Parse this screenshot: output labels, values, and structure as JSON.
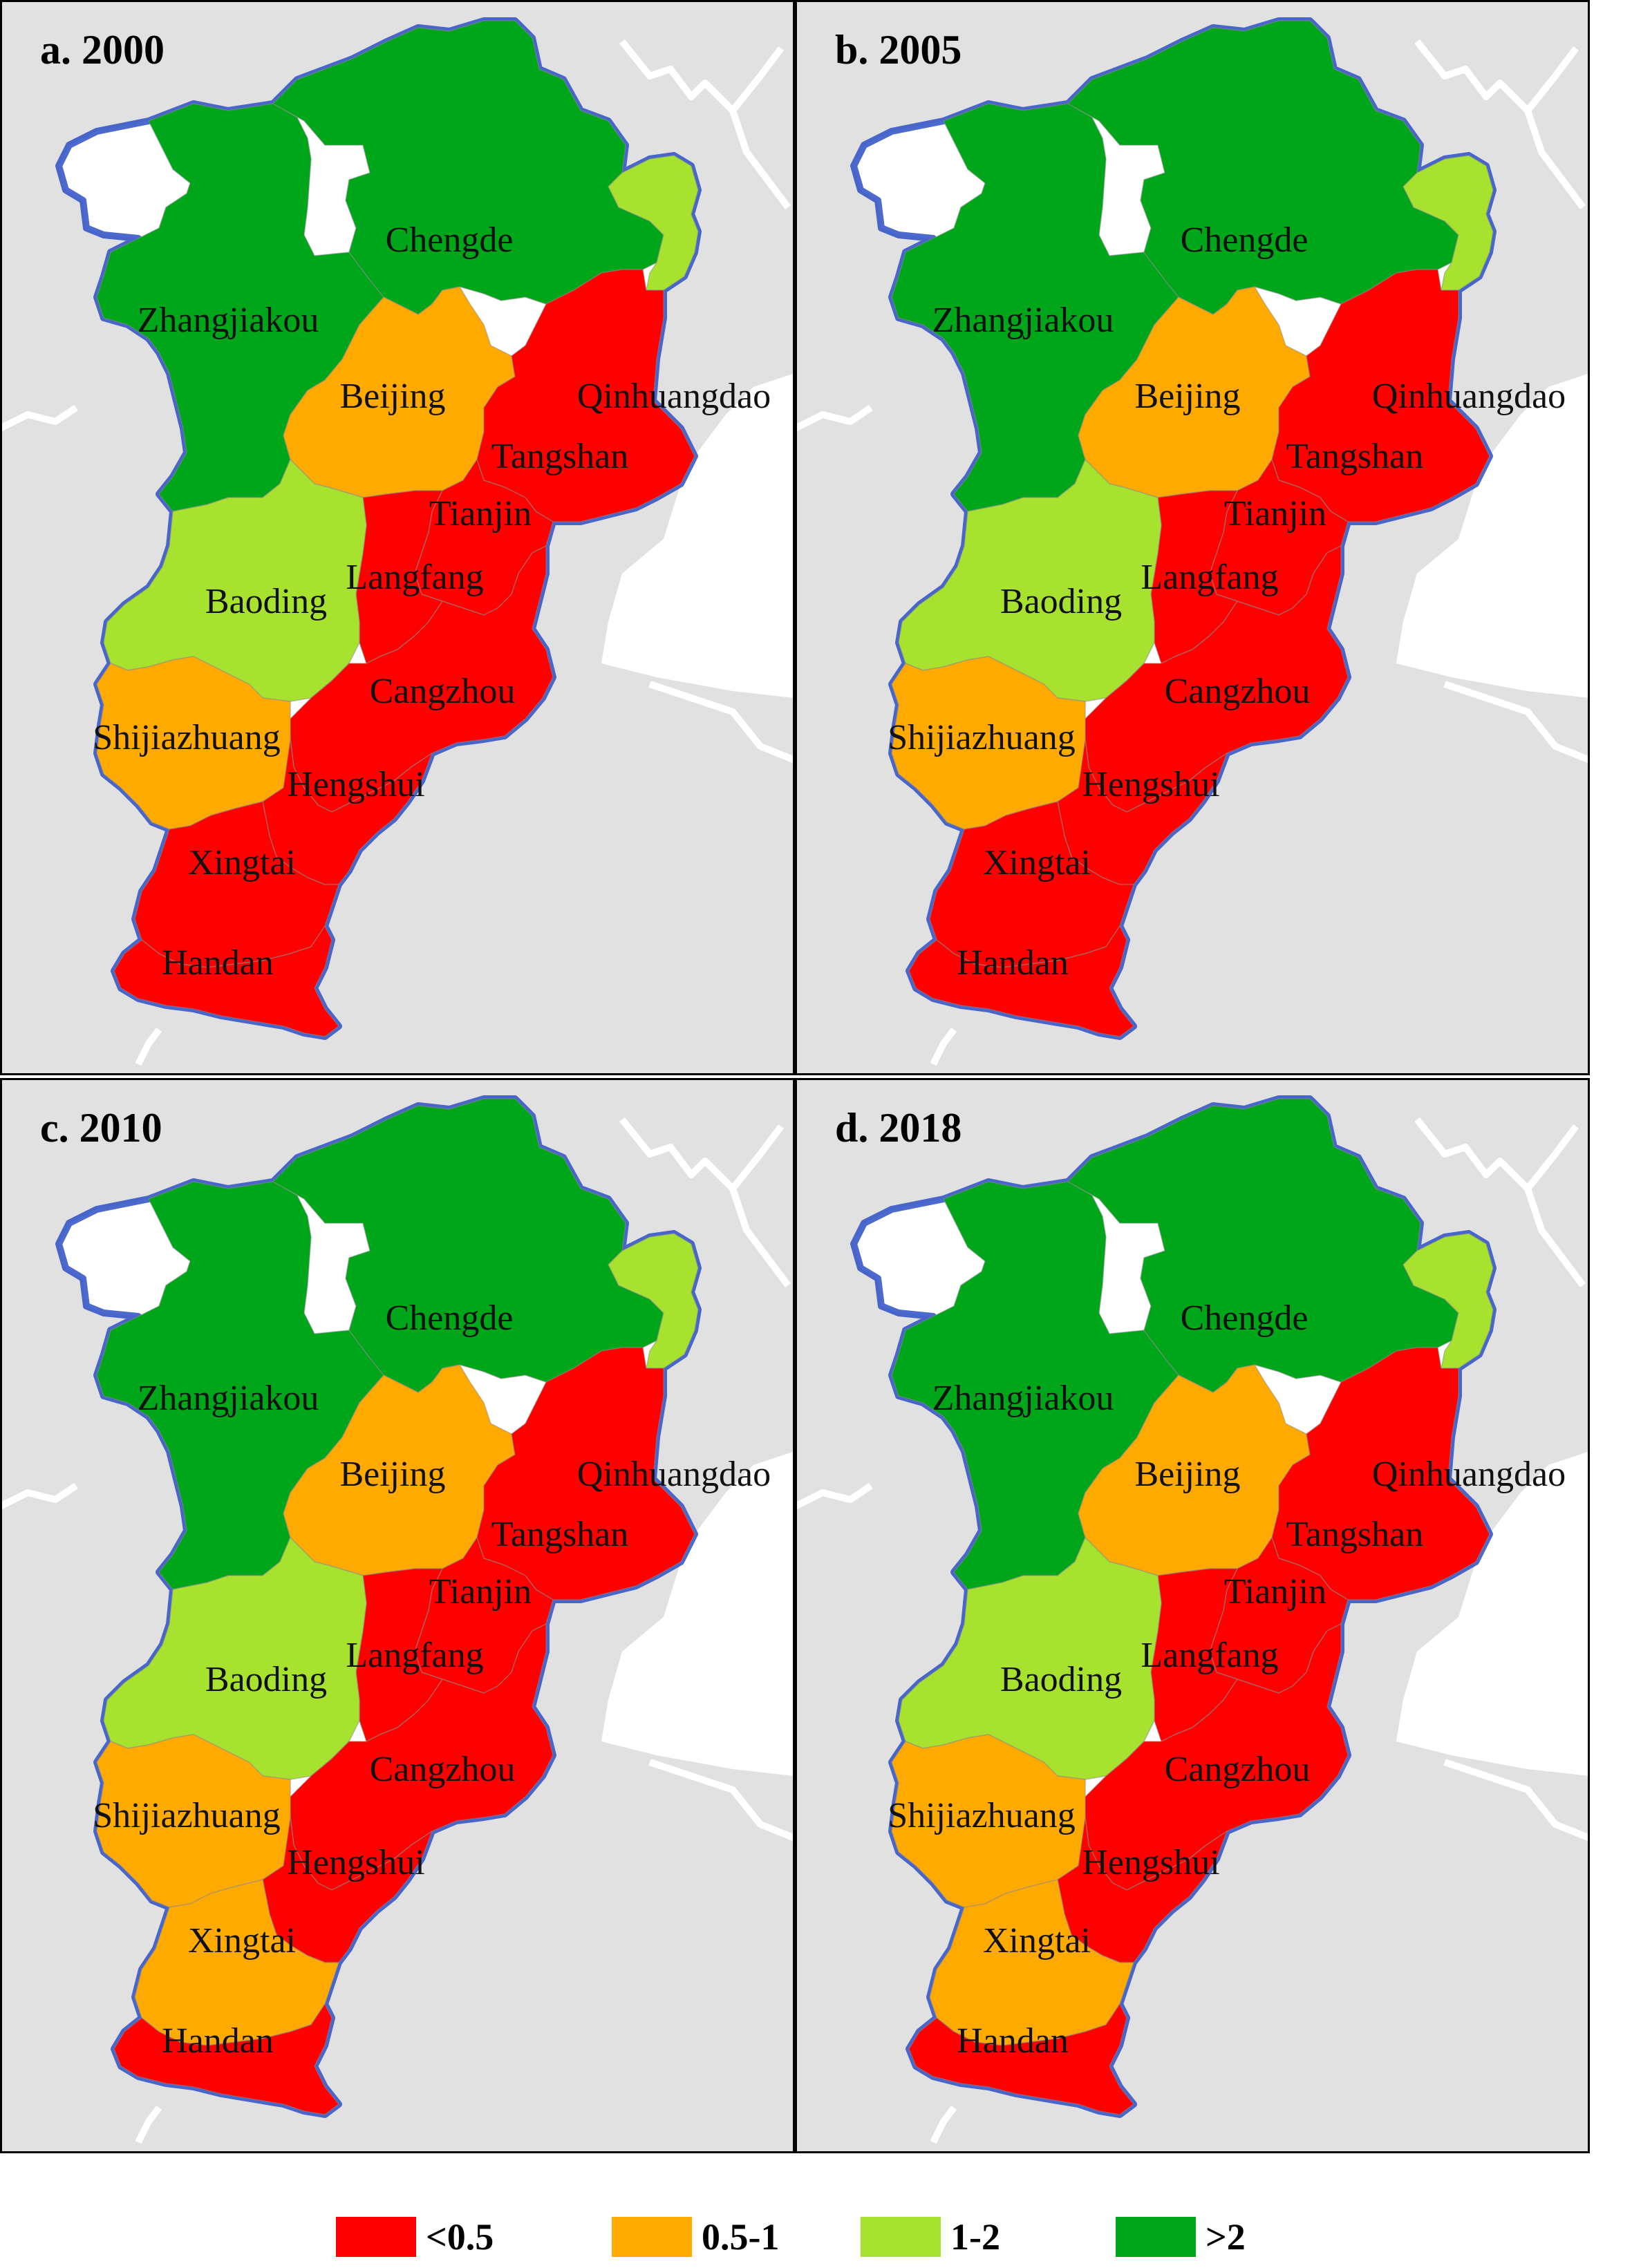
{
  "panels": [
    {
      "title": "a. 2000",
      "classes": {
        "zhangjiakou": ">2",
        "chengde": ">2",
        "qinhuangdao": "1-2",
        "beijing": "0.5-1",
        "tangshan": "<0.5",
        "tianjin": "<0.5",
        "langfang": "<0.5",
        "baoding": "1-2",
        "cangzhou": "<0.5",
        "shijiazhuang": "0.5-1",
        "hengshui": "<0.5",
        "xingtai": "<0.5",
        "handan": "<0.5"
      }
    },
    {
      "title": "b. 2005",
      "classes": {
        "zhangjiakou": ">2",
        "chengde": ">2",
        "qinhuangdao": "1-2",
        "beijing": "0.5-1",
        "tangshan": "<0.5",
        "tianjin": "<0.5",
        "langfang": "<0.5",
        "baoding": "1-2",
        "cangzhou": "<0.5",
        "shijiazhuang": "0.5-1",
        "hengshui": "<0.5",
        "xingtai": "<0.5",
        "handan": "<0.5"
      }
    },
    {
      "title": "c. 2010",
      "classes": {
        "zhangjiakou": ">2",
        "chengde": ">2",
        "qinhuangdao": "1-2",
        "beijing": "0.5-1",
        "tangshan": "<0.5",
        "tianjin": "<0.5",
        "langfang": "<0.5",
        "baoding": "1-2",
        "cangzhou": "<0.5",
        "shijiazhuang": "0.5-1",
        "hengshui": "<0.5",
        "xingtai": "0.5-1",
        "handan": "<0.5"
      }
    },
    {
      "title": "d. 2018",
      "classes": {
        "zhangjiakou": ">2",
        "chengde": ">2",
        "qinhuangdao": "1-2",
        "beijing": "0.5-1",
        "tangshan": "<0.5",
        "tianjin": "<0.5",
        "langfang": "<0.5",
        "baoding": "1-2",
        "cangzhou": "<0.5",
        "shijiazhuang": "0.5-1",
        "hengshui": "<0.5",
        "xingtai": "0.5-1",
        "handan": "<0.5"
      }
    }
  ],
  "city_labels": {
    "zhangjiakou": "Zhangjiakou",
    "chengde": "Chengde",
    "qinhuangdao": "Qinhuangdao",
    "beijing": "Beijing",
    "tangshan": "Tangshan",
    "tianjin": "Tianjin",
    "langfang": "Langfang",
    "baoding": "Baoding",
    "cangzhou": "Cangzhou",
    "shijiazhuang": "Shijiazhuang",
    "hengshui": "Hengshui",
    "xingtai": "Xingtai",
    "handan": "Handan"
  },
  "legend": [
    {
      "label": "<0.5",
      "color": "#ff0000"
    },
    {
      "label": "0.5-1",
      "color": "#ffaa00"
    },
    {
      "label": "1-2",
      "color": "#a6e22e"
    },
    {
      "label": ">2",
      "color": "#00a61a"
    }
  ],
  "colors": {
    "background_land": "#e1e1e1",
    "sea": "#ffffff",
    "region_border": "#2d4fc4",
    "frame": "#000000",
    "river": "#ffffff"
  }
}
